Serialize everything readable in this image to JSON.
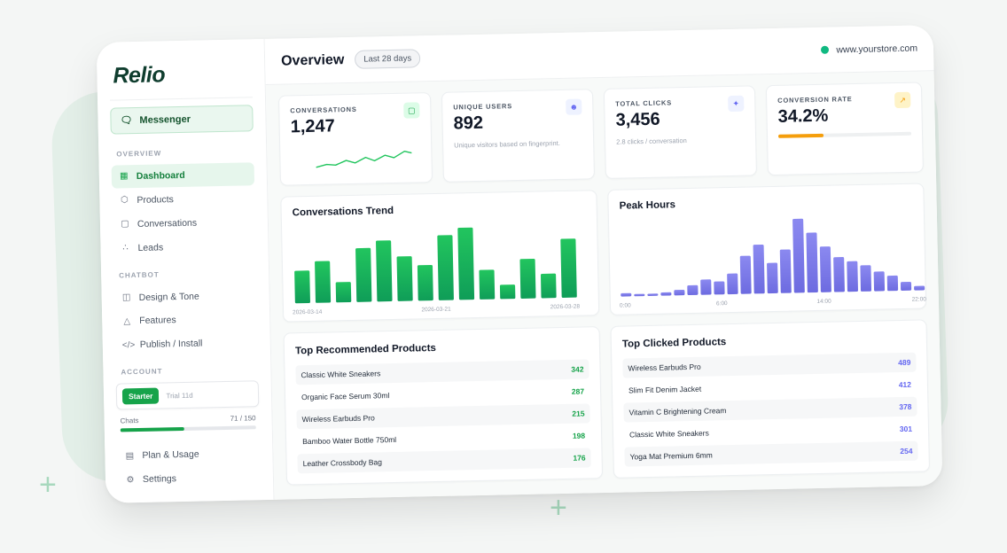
{
  "app": {
    "logo": "Relio",
    "messenger": "Messenger"
  },
  "sidebar": {
    "overview_label": "OVERVIEW",
    "overview_items": [
      {
        "label": "Dashboard",
        "icon": "grid-icon",
        "active": true
      },
      {
        "label": "Products",
        "icon": "cube-icon"
      },
      {
        "label": "Conversations",
        "icon": "chat-icon"
      },
      {
        "label": "Leads",
        "icon": "users-icon"
      }
    ],
    "chatbot_label": "CHATBOT",
    "chatbot_items": [
      {
        "label": "Design & Tone",
        "icon": "palette-icon"
      },
      {
        "label": "Features",
        "icon": "flask-icon"
      },
      {
        "label": "Publish / Install",
        "icon": "code-icon"
      }
    ],
    "account_label": "ACCOUNT",
    "plan": {
      "badge": "Starter",
      "trial": "Trial 11d"
    },
    "chats": {
      "label": "Chats",
      "value": "71 / 150",
      "progress": 0.47
    },
    "account_items": [
      {
        "label": "Plan & Usage",
        "icon": "card-icon"
      },
      {
        "label": "Settings",
        "icon": "gear-icon"
      }
    ]
  },
  "header": {
    "title": "Overview",
    "range": "Last 28 days",
    "store": "www.yourstore.com"
  },
  "kpis": {
    "conversations": {
      "label": "CONVERSATIONS",
      "value": "1,247"
    },
    "users": {
      "label": "UNIQUE USERS",
      "value": "892",
      "sub": "Unique visitors based on fingerprint."
    },
    "clicks": {
      "label": "TOTAL CLICKS",
      "value": "3,456",
      "sub": "2.8 clicks / conversation"
    },
    "conversion": {
      "label": "CONVERSION RATE",
      "value": "34.2%",
      "progress": 0.342
    }
  },
  "colors": {
    "green": "#16a34a",
    "purple": "#7b79e8",
    "amber": "#f59e0b"
  },
  "chart_data": [
    {
      "type": "bar",
      "title": "Conversations Trend",
      "x_ticks": [
        "2026-03-14",
        "2026-03-21",
        "2026-03-28"
      ],
      "values": [
        32,
        41,
        20,
        53,
        60,
        44,
        35,
        64,
        71,
        29,
        14,
        39,
        24,
        58
      ],
      "ylim": [
        0,
        75
      ]
    },
    {
      "type": "bar",
      "title": "Peak Hours",
      "x_ticks": [
        "0:00",
        "6:00",
        "14:00",
        "22:00"
      ],
      "values": [
        3,
        2,
        2,
        3,
        5,
        9,
        14,
        12,
        19,
        35,
        45,
        28,
        40,
        68,
        55,
        42,
        32,
        28,
        24,
        18,
        14,
        8,
        4
      ],
      "ylim": [
        0,
        70
      ]
    }
  ],
  "top_recommended": {
    "title": "Top Recommended Products",
    "rows": [
      {
        "name": "Classic White Sneakers",
        "count": "342"
      },
      {
        "name": "Organic Face Serum 30ml",
        "count": "287"
      },
      {
        "name": "Wireless Earbuds Pro",
        "count": "215"
      },
      {
        "name": "Bamboo Water Bottle 750ml",
        "count": "198"
      },
      {
        "name": "Leather Crossbody Bag",
        "count": "176"
      }
    ]
  },
  "top_clicked": {
    "title": "Top Clicked Products",
    "rows": [
      {
        "name": "Wireless Earbuds Pro",
        "count": "489"
      },
      {
        "name": "Slim Fit Denim Jacket",
        "count": "412"
      },
      {
        "name": "Vitamin C Brightening Cream",
        "count": "378"
      },
      {
        "name": "Classic White Sneakers",
        "count": "301"
      },
      {
        "name": "Yoga Mat Premium 6mm",
        "count": "254"
      }
    ]
  }
}
